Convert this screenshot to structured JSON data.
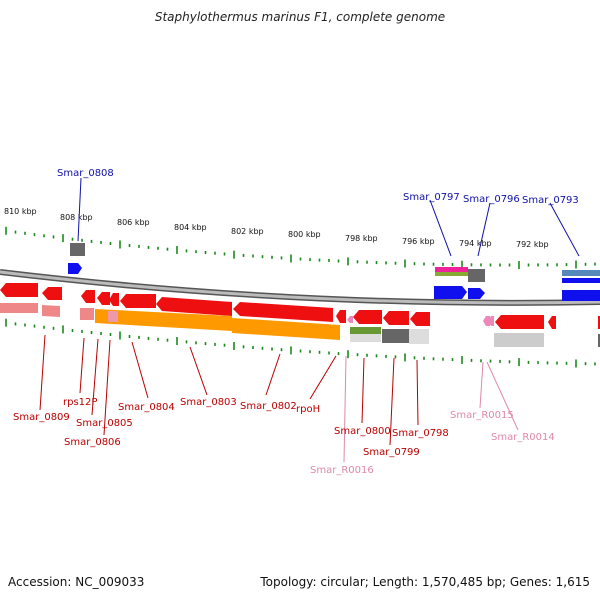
{
  "title": "Staphylothermus marinus F1, complete genome",
  "footer": {
    "accession": "Accession: NC_009033",
    "topology": "Topology: circular; Length: 1,570,485 bp; Genes: 1,615"
  },
  "scale_labels": [
    "810 kbp",
    "808 kbp",
    "806 kbp",
    "804 kbp",
    "802 kbp",
    "800 kbp",
    "798 kbp",
    "796 kbp",
    "794 kbp",
    "792 kbp"
  ],
  "gene_labels_top": [
    "Smar_0808",
    "Smar_0797",
    "Smar_0796",
    "Smar_0793"
  ],
  "gene_labels_bottom": [
    "Smar_0809",
    "rps12P",
    "Smar_0805",
    "Smar_0806",
    "Smar_0804",
    "Smar_0803",
    "Smar_0802",
    "rpoH",
    "Smar_0800",
    "Smar_0798",
    "Smar_0799",
    "Smar_R0016",
    "Smar_R0015",
    "Smar_R0014"
  ],
  "colors": {
    "forward_gene": "#1010ee",
    "reverse_gene": "#ee1010",
    "rna_gene": "#ee88bb",
    "ticks": "#1a8a1a",
    "backbone": "#888888",
    "label_blue": "#1010aa",
    "label_red": "#bb0000",
    "label_pink": "#dd88aa"
  }
}
